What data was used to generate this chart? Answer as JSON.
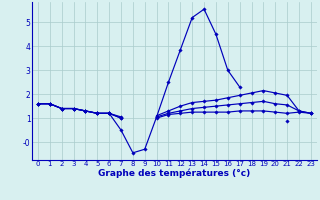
{
  "x": [
    0,
    1,
    2,
    3,
    4,
    5,
    6,
    7,
    8,
    9,
    10,
    11,
    12,
    13,
    14,
    15,
    16,
    17,
    18,
    19,
    20,
    21,
    22,
    23
  ],
  "curve_main": [
    1.6,
    1.6,
    1.4,
    1.4,
    1.3,
    1.2,
    1.2,
    0.5,
    -0.45,
    -0.3,
    1.05,
    2.5,
    3.85,
    5.2,
    5.55,
    4.5,
    3.0,
    2.3,
    null,
    null,
    null,
    0.9,
    null,
    null
  ],
  "curve_upper": [
    1.6,
    1.6,
    1.4,
    1.4,
    1.3,
    1.2,
    1.2,
    1.05,
    null,
    null,
    1.1,
    1.3,
    1.5,
    1.65,
    1.7,
    1.75,
    1.85,
    1.95,
    2.05,
    2.15,
    2.05,
    1.95,
    1.3,
    1.2
  ],
  "curve_mid": [
    1.6,
    1.6,
    1.4,
    1.4,
    1.3,
    1.2,
    1.2,
    1.0,
    null,
    null,
    1.05,
    1.2,
    1.3,
    1.4,
    1.45,
    1.5,
    1.55,
    1.6,
    1.65,
    1.7,
    1.6,
    1.55,
    1.3,
    1.2
  ],
  "curve_lower": [
    1.6,
    1.6,
    1.4,
    1.4,
    1.3,
    1.2,
    1.2,
    1.0,
    null,
    null,
    1.0,
    1.15,
    1.2,
    1.25,
    1.25,
    1.25,
    1.25,
    1.3,
    1.3,
    1.3,
    1.25,
    1.2,
    1.25,
    1.2
  ],
  "xlim": [
    -0.5,
    23.5
  ],
  "ylim": [
    -0.75,
    5.85
  ],
  "line_color": "#0000bb",
  "bg_color": "#d8f0f0",
  "grid_color": "#aacccc",
  "marker": "D",
  "markersize": 1.8,
  "linewidth": 0.85,
  "xlabel": "Graphe des températures (°c)",
  "xlabel_fontsize": 6.5,
  "xtick_fontsize": 5.0,
  "ytick_fontsize": 5.5
}
